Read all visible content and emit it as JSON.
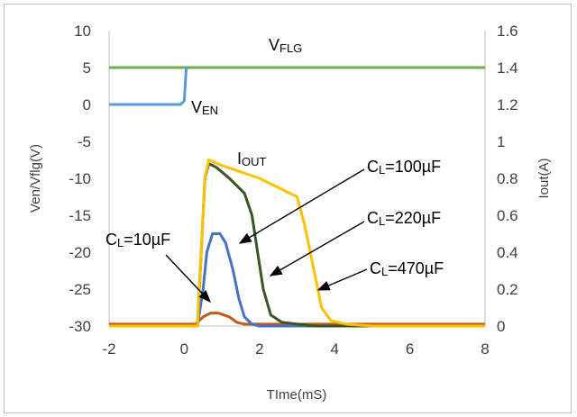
{
  "chart_data": {
    "type": "line",
    "xlabel": "TIme(mS)",
    "ylabel_left": "Ven/Vflg(V)",
    "ylabel_right": "Iout(A)",
    "xlim": [
      -2,
      8
    ],
    "ylim_left": [
      -30,
      10
    ],
    "ylim_right": [
      0,
      1.6
    ],
    "xticks": [
      "-2",
      "0",
      "2",
      "4",
      "6",
      "8"
    ],
    "yticks_left": [
      "10",
      "5",
      "0",
      "-5",
      "-10",
      "-15",
      "-20",
      "-25",
      "-30"
    ],
    "yticks_right": [
      "1.6",
      "1.4",
      "1.2",
      "1",
      "0.8",
      "0.6",
      "0.4",
      "0.2",
      "0"
    ],
    "grid": false,
    "legend": "none",
    "series": [
      {
        "name": "VFLG",
        "axis": "left",
        "color": "#70ad47",
        "points": [
          [
            -2,
            5
          ],
          [
            8,
            5
          ]
        ]
      },
      {
        "name": "VEN",
        "axis": "left",
        "color": "#5b9bd5",
        "points": [
          [
            -2,
            0
          ],
          [
            -0.1,
            0
          ],
          [
            0,
            0.5
          ],
          [
            0.05,
            4.8
          ],
          [
            0.1,
            5
          ]
        ]
      },
      {
        "name": "CL=10µF",
        "axis": "right",
        "color": "#c55a11",
        "points": [
          [
            -2,
            0.01
          ],
          [
            0.3,
            0.01
          ],
          [
            0.5,
            0.05
          ],
          [
            0.7,
            0.07
          ],
          [
            0.9,
            0.07
          ],
          [
            1.2,
            0.05
          ],
          [
            1.4,
            0.02
          ],
          [
            1.6,
            0.01
          ],
          [
            8,
            0.01
          ]
        ]
      },
      {
        "name": "CL=100µF",
        "axis": "right",
        "color": "#4472c4",
        "points": [
          [
            -2,
            0
          ],
          [
            0.35,
            0
          ],
          [
            0.5,
            0.2
          ],
          [
            0.6,
            0.4
          ],
          [
            0.75,
            0.5
          ],
          [
            0.95,
            0.5
          ],
          [
            1.1,
            0.45
          ],
          [
            1.3,
            0.3
          ],
          [
            1.45,
            0.15
          ],
          [
            1.6,
            0.05
          ],
          [
            1.8,
            0.01
          ],
          [
            2,
            0
          ],
          [
            8,
            0
          ]
        ]
      },
      {
        "name": "CL=220µF",
        "axis": "right",
        "color": "#375623",
        "points": [
          [
            -2,
            0
          ],
          [
            0.35,
            0
          ],
          [
            0.45,
            0.4
          ],
          [
            0.55,
            0.8
          ],
          [
            0.65,
            0.88
          ],
          [
            0.85,
            0.86
          ],
          [
            1.2,
            0.8
          ],
          [
            1.6,
            0.72
          ],
          [
            1.8,
            0.6
          ],
          [
            1.95,
            0.4
          ],
          [
            2.1,
            0.2
          ],
          [
            2.3,
            0.06
          ],
          [
            2.6,
            0.02
          ],
          [
            3,
            0.01
          ],
          [
            3.5,
            0
          ],
          [
            8,
            0
          ]
        ]
      },
      {
        "name": "CL=470µF",
        "axis": "right",
        "color": "#ffc000",
        "points": [
          [
            -2,
            0
          ],
          [
            0.35,
            0
          ],
          [
            0.45,
            0.4
          ],
          [
            0.55,
            0.8
          ],
          [
            0.65,
            0.9
          ],
          [
            1,
            0.87
          ],
          [
            2,
            0.8
          ],
          [
            3,
            0.7
          ],
          [
            3.2,
            0.55
          ],
          [
            3.45,
            0.3
          ],
          [
            3.65,
            0.1
          ],
          [
            3.9,
            0.03
          ],
          [
            4.3,
            0.01
          ],
          [
            5,
            0
          ],
          [
            8,
            0
          ]
        ]
      }
    ]
  },
  "annotations": {
    "vflg": {
      "main": "V",
      "sub": "FLG"
    },
    "ven": {
      "main": "V",
      "sub": "EN"
    },
    "iout": {
      "main": "I",
      "sub": "OUT"
    },
    "cl10": {
      "main": "C",
      "sub": "L",
      "rest": "=10µF"
    },
    "cl100": {
      "main": "C",
      "sub": "L",
      "rest": "=100µF"
    },
    "cl220": {
      "main": "C",
      "sub": "L",
      "rest": "=220µF"
    },
    "cl470": {
      "main": "C",
      "sub": "L",
      "rest": "=470µF"
    }
  }
}
